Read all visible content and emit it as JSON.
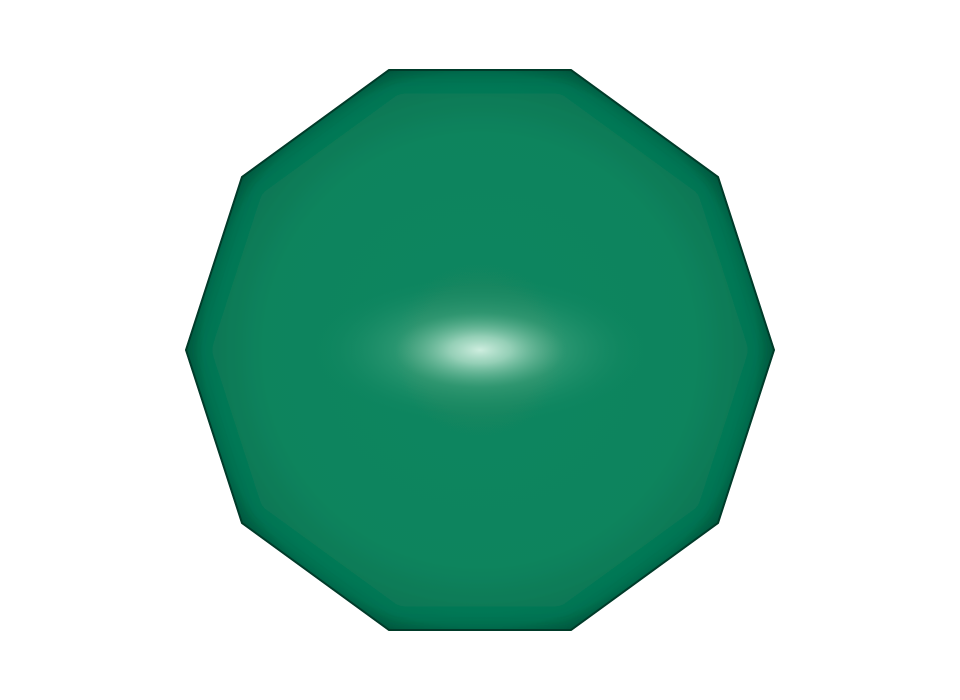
{
  "shape": {
    "kind": "decagon",
    "sides": 10,
    "colors": {
      "base": "#0b845d",
      "mid": "#15865f",
      "edge_dark": "#0a5a40",
      "outline": "#0d3f2e",
      "highlight": "#d8f3e6"
    }
  }
}
